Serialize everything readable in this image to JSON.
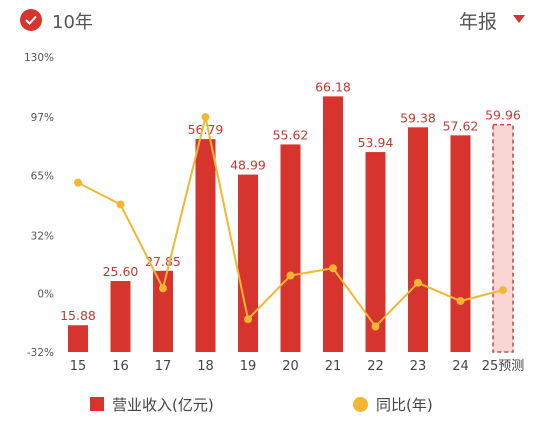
{
  "header": {
    "period_label": "10年",
    "report_label": "年报",
    "colors": {
      "accent": "#d6342c"
    }
  },
  "legend": {
    "bar_label": "营业收入(亿元)",
    "line_label": "同比(年)"
  },
  "chart_data": {
    "type": "bar",
    "categories": [
      "15",
      "16",
      "17",
      "18",
      "19",
      "20",
      "21",
      "22",
      "23",
      "24",
      "25预测"
    ],
    "series": [
      {
        "name": "营业收入(亿元)",
        "type": "bar",
        "values": [
          15.88,
          25.6,
          27.85,
          56.79,
          48.99,
          55.62,
          66.18,
          53.94,
          59.38,
          57.62,
          59.96
        ],
        "labels": [
          "15.88",
          "25.60",
          "27.85",
          "56.79",
          "48.99",
          "55.62",
          "66.18",
          "53.94",
          "59.38",
          "57.62",
          "59.96"
        ],
        "forecast_last": true,
        "color": "#d6342c"
      },
      {
        "name": "同比(年)",
        "type": "line",
        "values": [
          61,
          49,
          3,
          97,
          -14,
          10,
          14,
          -18,
          6,
          -4,
          2
        ],
        "color": "#f4b632"
      }
    ],
    "y_ticks": [
      "130%",
      "97%",
      "65%",
      "32%",
      "0%",
      "-32%"
    ],
    "y_tick_values": [
      130,
      97,
      65,
      32,
      0,
      -32
    ],
    "ylim": [
      -32,
      130
    ],
    "bar_ylim": [
      10,
      70
    ],
    "grid": false,
    "legend_position": "bottom"
  }
}
